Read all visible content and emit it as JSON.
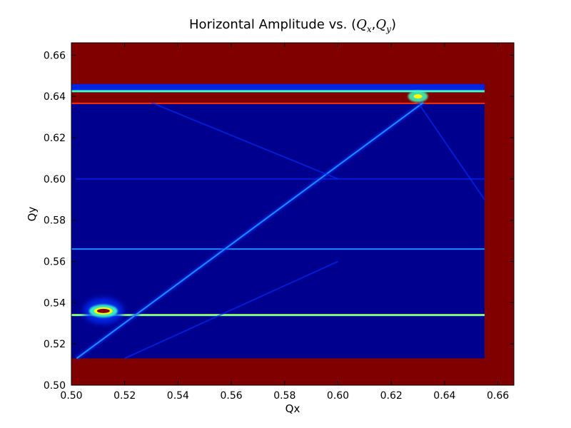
{
  "chart_data": {
    "type": "heatmap",
    "title": {
      "prefix": "Horizontal Amplitude vs. (",
      "qx_base": "Q",
      "qx_sub": "x",
      "comma": ",",
      "qy_base": "Q",
      "qy_sub": "y",
      "suffix": ")"
    },
    "xlabel": "Qx",
    "ylabel": "Qy",
    "xlim": [
      0.5,
      0.666
    ],
    "ylim": [
      0.5,
      0.666
    ],
    "xticks": [
      {
        "value": 0.5,
        "label": "0.50"
      },
      {
        "value": 0.52,
        "label": "0.52"
      },
      {
        "value": 0.54,
        "label": "0.54"
      },
      {
        "value": 0.56,
        "label": "0.56"
      },
      {
        "value": 0.58,
        "label": "0.58"
      },
      {
        "value": 0.6,
        "label": "0.60"
      },
      {
        "value": 0.62,
        "label": "0.62"
      },
      {
        "value": 0.64,
        "label": "0.64"
      },
      {
        "value": 0.66,
        "label": "0.66"
      }
    ],
    "yticks": [
      {
        "value": 0.5,
        "label": "0.50"
      },
      {
        "value": 0.52,
        "label": "0.52"
      },
      {
        "value": 0.54,
        "label": "0.54"
      },
      {
        "value": 0.56,
        "label": "0.56"
      },
      {
        "value": 0.58,
        "label": "0.58"
      },
      {
        "value": 0.6,
        "label": "0.60"
      },
      {
        "value": 0.62,
        "label": "0.62"
      },
      {
        "value": 0.64,
        "label": "0.64"
      },
      {
        "value": 0.66,
        "label": "0.66"
      }
    ],
    "colormap": "jet",
    "grid": false,
    "colors": {
      "background_max": "#800000",
      "field_low": "#00008f",
      "field_mid": "#0030ff",
      "line_hi": "#40ffc0",
      "line_peak": "#ffff00",
      "line_red": "#ff3000"
    },
    "features": {
      "valid_region": {
        "qx_min": 0.5,
        "qx_max": 0.655,
        "qy_min": 0.513,
        "qy_max": 0.646
      },
      "saturated_band_top": {
        "qy_min": 0.637,
        "qy_max": 0.642
      },
      "resonance_lines": [
        {
          "name": "horizontal_hot",
          "qx": [
            0.5,
            0.655
          ],
          "qy": [
            0.534,
            0.534
          ],
          "intensity": "high"
        },
        {
          "name": "horizontal_mid",
          "qx": [
            0.5,
            0.655
          ],
          "qy": [
            0.566,
            0.566
          ],
          "intensity": "mid"
        },
        {
          "name": "horizontal_faint",
          "qx": [
            0.5,
            0.655
          ],
          "qy": [
            0.6,
            0.6
          ],
          "intensity": "low"
        },
        {
          "name": "diagonal_main",
          "qx": [
            0.502,
            0.632
          ],
          "qy": [
            0.513,
            0.637
          ],
          "intensity": "mid"
        },
        {
          "name": "diagonal_lower",
          "qx": [
            0.52,
            0.6
          ],
          "qy": [
            0.513,
            0.56
          ],
          "intensity": "low"
        },
        {
          "name": "descending_right",
          "qx": [
            0.63,
            0.655
          ],
          "qy": [
            0.637,
            0.59
          ],
          "intensity": "low"
        },
        {
          "name": "descending_left",
          "qx": [
            0.53,
            0.6
          ],
          "qy": [
            0.637,
            0.6
          ],
          "intensity": "low"
        }
      ],
      "hot_spots": [
        {
          "qx": 0.512,
          "qy": 0.536,
          "value": "max"
        },
        {
          "qx": 0.63,
          "qy": 0.64,
          "value": "high"
        }
      ]
    }
  }
}
